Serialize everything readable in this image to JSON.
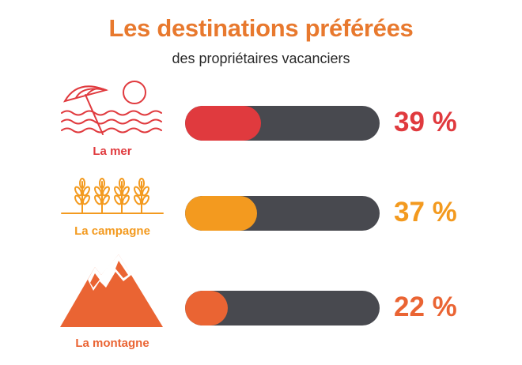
{
  "title": "Les destinations préférées",
  "subtitle": "des propriétaires vacanciers",
  "chart_data": {
    "type": "bar",
    "title": "Les destinations préférées",
    "subtitle": "des propriétaires vacanciers",
    "categories": [
      "La mer",
      "La campagne",
      "La montagne"
    ],
    "values": [
      39,
      37,
      22
    ],
    "value_labels": [
      "39 %",
      "37 %",
      "22 %"
    ],
    "colors": [
      "#e03a3e",
      "#f39a1f",
      "#ea6433"
    ],
    "track_color": "#48494f",
    "icons": [
      "beach-umbrella-sun-waves-icon",
      "wheat-field-icon",
      "mountain-peaks-icon"
    ],
    "ylim": [
      0,
      100
    ]
  }
}
